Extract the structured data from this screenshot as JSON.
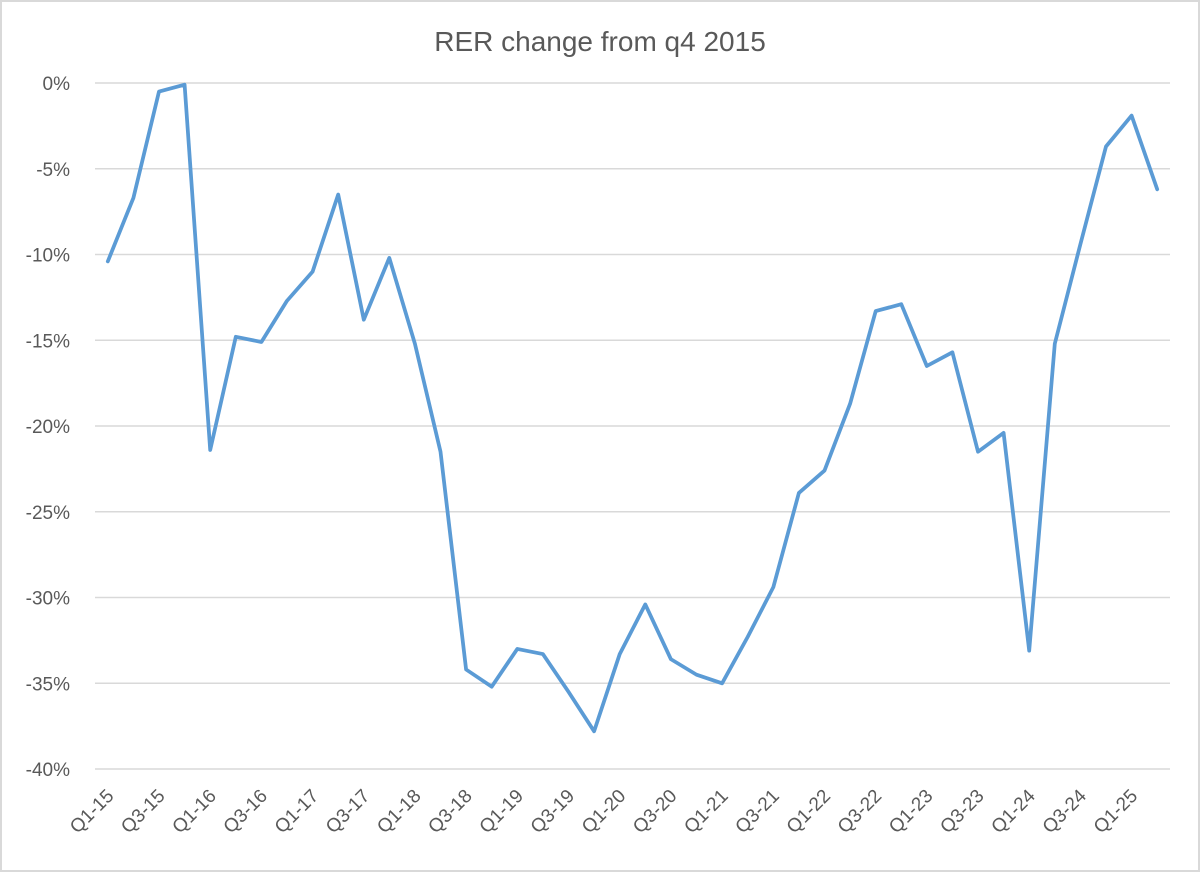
{
  "chart_data": {
    "type": "line",
    "title": "RER change from q4 2015",
    "categories": [
      "Q1-15",
      "Q2-15",
      "Q3-15",
      "Q4-15",
      "Q1-16",
      "Q2-16",
      "Q3-16",
      "Q4-16",
      "Q1-17",
      "Q2-17",
      "Q3-17",
      "Q4-17",
      "Q1-18",
      "Q2-18",
      "Q3-18",
      "Q4-18",
      "Q1-19",
      "Q2-19",
      "Q3-19",
      "Q4-19",
      "Q1-20",
      "Q2-20",
      "Q3-20",
      "Q4-20",
      "Q1-21",
      "Q2-21",
      "Q3-21",
      "Q4-21",
      "Q1-22",
      "Q2-22",
      "Q3-22",
      "Q4-22",
      "Q1-23",
      "Q2-23",
      "Q3-23",
      "Q4-23",
      "Q1-24",
      "Q2-24",
      "Q3-24",
      "Q4-24",
      "Q1-25",
      "Q2-25"
    ],
    "values": [
      -10.4,
      -6.7,
      -0.5,
      -0.1,
      -21.4,
      -14.8,
      -15.1,
      -12.7,
      -11.0,
      -6.5,
      -13.8,
      -10.2,
      -15.2,
      -21.5,
      -34.2,
      -35.2,
      -33.0,
      -33.3,
      -35.5,
      -37.8,
      -33.3,
      -30.4,
      -33.6,
      -34.5,
      -35.0,
      -32.3,
      -29.4,
      -23.9,
      -22.6,
      -18.7,
      -13.3,
      -12.9,
      -16.5,
      -15.7,
      -21.5,
      -20.4,
      -33.1,
      -15.2,
      -9.4,
      -3.7,
      -1.9,
      -6.2
    ],
    "series_name": "RER change",
    "xlabel": "",
    "ylabel": "",
    "ylim": [
      -40,
      0
    ],
    "y_tick_values": [
      0,
      -5,
      -10,
      -15,
      -20,
      -25,
      -30,
      -35,
      -40
    ],
    "y_tick_labels": [
      "0%",
      "-5%",
      "-10%",
      "-15%",
      "-20%",
      "-25%",
      "-30%",
      "-35%",
      "-40%"
    ],
    "x_tick_every": 2,
    "x_tick_labels": [
      "Q1-15",
      "Q3-15",
      "Q1-16",
      "Q3-16",
      "Q1-17",
      "Q3-17",
      "Q1-18",
      "Q3-18",
      "Q1-19",
      "Q3-19",
      "Q1-20",
      "Q3-20",
      "Q1-21",
      "Q3-21",
      "Q1-22",
      "Q3-22",
      "Q1-23",
      "Q3-23",
      "Q1-24",
      "Q3-24",
      "Q1-25"
    ],
    "grid": "horizontal",
    "legend": "none",
    "colors": {
      "line": "#5B9BD5",
      "gridline": "#D9D9D9",
      "border": "#D9D9D9",
      "text": "#595959",
      "background": "#FFFFFF"
    }
  }
}
